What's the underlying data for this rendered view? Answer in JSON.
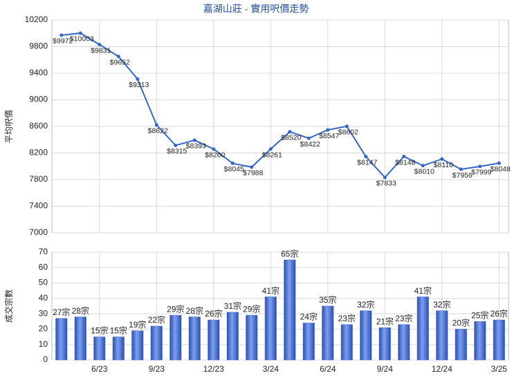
{
  "chart_data": [
    {
      "type": "line",
      "title": "嘉湖山莊 - 實用呎價走勢",
      "y_label": "平均呎價",
      "color": "#3366cc",
      "values": [
        9972,
        10003,
        9831,
        9652,
        9313,
        8622,
        8315,
        8393,
        8260,
        8045,
        7988,
        8261,
        8520,
        8422,
        8547,
        8602,
        8147,
        7833,
        8148,
        8010,
        8110,
        7956,
        7999,
        8048
      ],
      "value_labels": [
        "$9972",
        "$10003",
        "$9831",
        "$9652",
        "$9313",
        "$8622",
        "$8315",
        "$8393",
        "$8260",
        "$8045",
        "$7988",
        "$8261",
        "$8520",
        "$8422",
        "$8547",
        "$8602",
        "$8147",
        "$7833",
        "$8148",
        "$8010",
        "$8110",
        "$7956",
        "$7999",
        "$8048"
      ],
      "ylim": [
        7000,
        10200
      ],
      "yticks": [
        7000,
        7400,
        7800,
        8200,
        8600,
        9000,
        9400,
        9800,
        10200
      ],
      "grid": true
    },
    {
      "type": "bar",
      "y_label": "成交宗數",
      "color": "#3a62c8",
      "categories": [
        null,
        null,
        "6/23",
        null,
        null,
        "9/23",
        null,
        null,
        "12/23",
        null,
        null,
        "3/24",
        null,
        null,
        "6/24",
        null,
        null,
        "9/24",
        null,
        null,
        "12/24",
        null,
        null,
        "3/25"
      ],
      "values": [
        27,
        28,
        15,
        15,
        19,
        22,
        29,
        28,
        26,
        31,
        29,
        41,
        65,
        24,
        35,
        23,
        32,
        21,
        23,
        41,
        32,
        20,
        25,
        26
      ],
      "value_labels": [
        "27宗",
        "28宗",
        "15宗",
        "15宗",
        "19宗",
        "22宗",
        "29宗",
        "28宗",
        "26宗",
        "31宗",
        "29宗",
        "41宗",
        "65宗",
        "24宗",
        "35宗",
        "23宗",
        "32宗",
        "21宗",
        "23宗",
        "41宗",
        "32宗",
        "20宗",
        "25宗",
        "26宗"
      ],
      "ylim": [
        0,
        70
      ],
      "yticks": [
        0,
        10,
        20,
        30,
        40,
        50,
        60,
        70
      ],
      "grid": true
    }
  ]
}
